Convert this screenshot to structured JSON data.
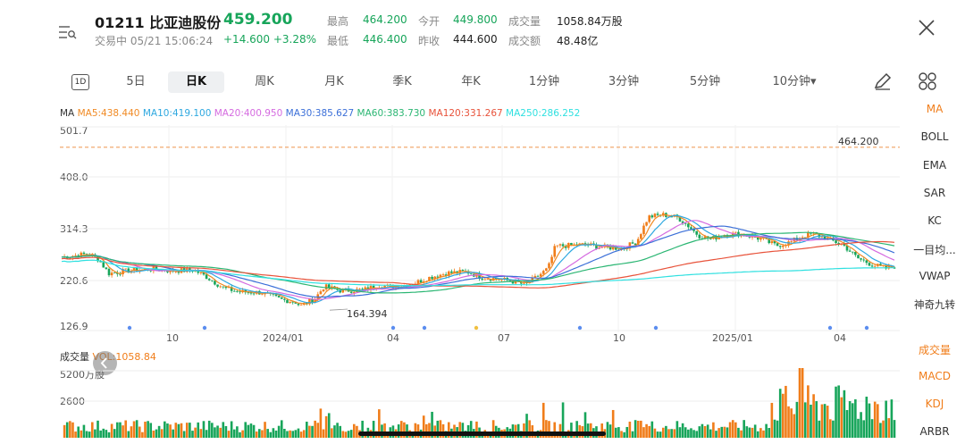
{
  "header": {
    "code_name": "01211 比亚迪股份",
    "price": "459.200",
    "status": "交易中 05/21 15:06:24",
    "change": "+14.600 +3.28%",
    "stats": [
      {
        "label": "最高",
        "value": "464.200"
      },
      {
        "label": "今开",
        "value": "449.800"
      },
      {
        "label": "成交量",
        "value": "1058.84万股"
      },
      {
        "label": "最低",
        "value": "446.400"
      },
      {
        "label": "昨收",
        "value": "444.600"
      },
      {
        "label": "成交额",
        "value": "48.48亿"
      }
    ]
  },
  "tabs": [
    {
      "label": "1D"
    },
    {
      "label": "5日"
    },
    {
      "label": "日K"
    },
    {
      "label": "周K"
    },
    {
      "label": "月K"
    },
    {
      "label": "季K"
    },
    {
      "label": "年K"
    },
    {
      "label": "1分钟"
    },
    {
      "label": "3分钟"
    },
    {
      "label": "5分钟"
    },
    {
      "label": "10分钟▾"
    }
  ],
  "active_tab": "日K",
  "ma_legend": {
    "prefix": "MA",
    "items": [
      {
        "label": "MA5:438.440",
        "color": "#f08a24"
      },
      {
        "label": "MA10:419.100",
        "color": "#2ea8e0"
      },
      {
        "label": "MA20:400.950",
        "color": "#d56be0"
      },
      {
        "label": "MA30:385.627",
        "color": "#3b6fd8"
      },
      {
        "label": "MA60:383.730",
        "color": "#2bb673"
      },
      {
        "label": "MA120:331.267",
        "color": "#e8533b"
      },
      {
        "label": "MA250:286.252",
        "color": "#2fe0e0"
      }
    ]
  },
  "side_indicators_main": [
    "MA",
    "BOLL",
    "EMA",
    "SAR",
    "KC",
    "一目均...",
    "VWAP",
    "神奇九转"
  ],
  "side_indicators_sub": [
    "成交量",
    "MACD",
    "KDJ",
    "ARBR"
  ],
  "volume_legend": {
    "label": "成交量",
    "value": "VOL:1058.84"
  },
  "chart_data": {
    "type": "candlestick",
    "price_axis": {
      "ticks": [
        "501.7",
        "408.0",
        "314.3",
        "220.6",
        "126.9"
      ],
      "range": [
        126.9,
        501.7
      ]
    },
    "x_ticks": [
      "10",
      "2024/01",
      "04",
      "07",
      "10",
      "2025/01",
      "04"
    ],
    "annotations": {
      "high": "464.200",
      "low": "164.394"
    },
    "volume_axis": {
      "ticks": [
        "5200万股",
        "2600"
      ]
    },
    "close_path": [
      [
        0,
        262
      ],
      [
        18,
        268
      ],
      [
        25,
        258
      ],
      [
        32,
        232
      ],
      [
        45,
        237
      ],
      [
        60,
        240
      ],
      [
        75,
        237
      ],
      [
        90,
        238
      ],
      [
        98,
        226
      ],
      [
        110,
        205
      ],
      [
        120,
        198
      ],
      [
        135,
        197
      ],
      [
        150,
        183
      ],
      [
        158,
        181
      ],
      [
        162,
        172
      ],
      [
        172,
        186
      ],
      [
        178,
        208
      ],
      [
        190,
        200
      ],
      [
        205,
        202
      ],
      [
        215,
        210
      ],
      [
        225,
        207
      ],
      [
        240,
        215
      ],
      [
        250,
        225
      ],
      [
        262,
        233
      ],
      [
        275,
        235
      ],
      [
        285,
        225
      ],
      [
        295,
        222
      ],
      [
        305,
        218
      ],
      [
        315,
        211
      ],
      [
        330,
        241
      ],
      [
        335,
        282
      ],
      [
        355,
        285
      ],
      [
        365,
        281
      ],
      [
        380,
        278
      ],
      [
        390,
        290
      ],
      [
        398,
        336
      ],
      [
        408,
        340
      ],
      [
        418,
        335
      ],
      [
        425,
        320
      ],
      [
        432,
        302
      ],
      [
        440,
        295
      ],
      [
        450,
        304
      ],
      [
        460,
        305
      ],
      [
        468,
        300
      ],
      [
        475,
        295
      ],
      [
        485,
        283
      ],
      [
        495,
        290
      ],
      [
        502,
        300
      ],
      [
        510,
        305
      ],
      [
        520,
        295
      ],
      [
        530,
        285
      ],
      [
        540,
        260
      ],
      [
        550,
        248
      ],
      [
        560,
        241
      ],
      [
        565,
        245
      ]
    ]
  },
  "colors": {
    "up": "#f07d1a",
    "down": "#17a55a",
    "accent": "#f07d1a",
    "dashed_line": "#f0a060"
  }
}
